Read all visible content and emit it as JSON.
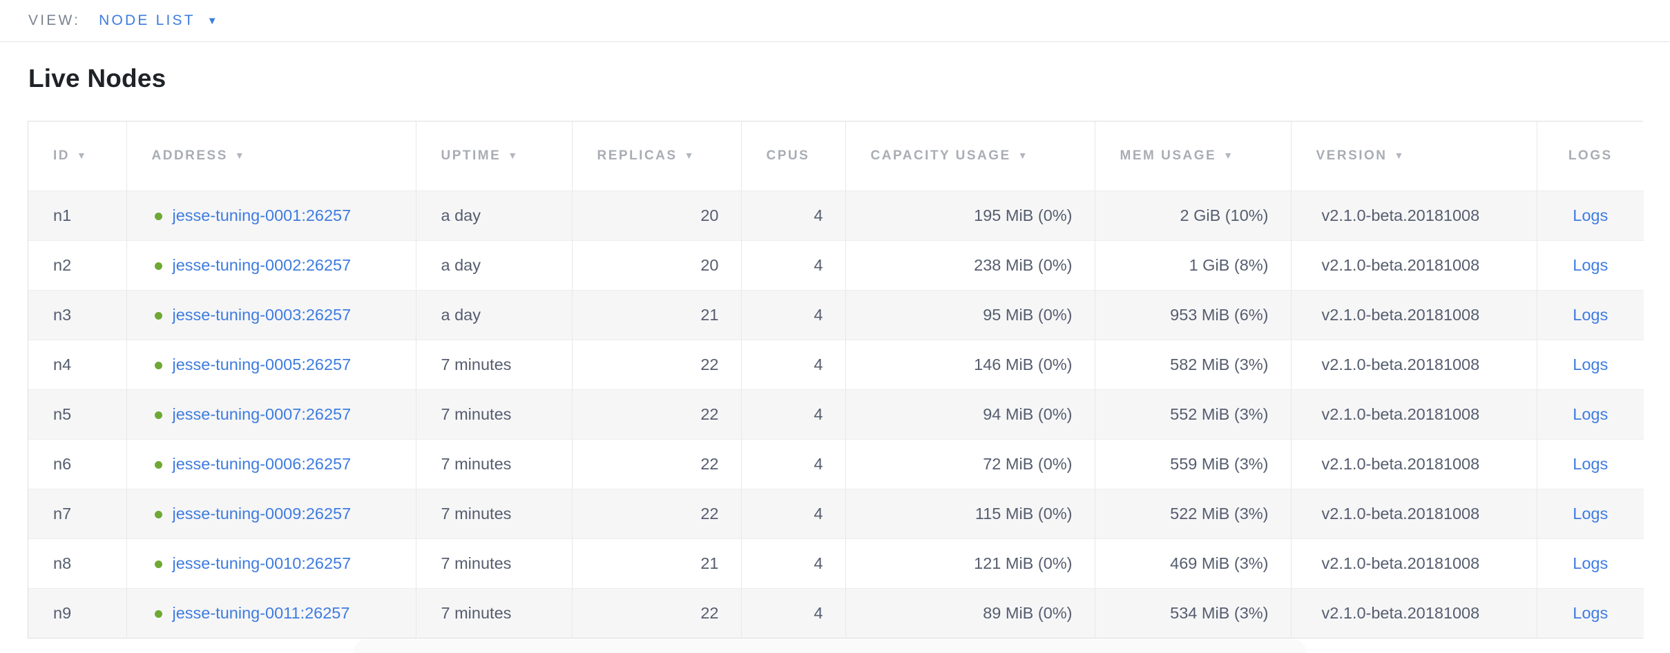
{
  "view_bar": {
    "label": "VIEW:",
    "selected": "NODE LIST",
    "caret_icon": "▼"
  },
  "page": {
    "title": "Live Nodes"
  },
  "table": {
    "sort_arrow_icon": "▼",
    "columns": [
      {
        "key": "id",
        "label": "ID",
        "sortable": true,
        "align": "left"
      },
      {
        "key": "address",
        "label": "ADDRESS",
        "sortable": true,
        "align": "left"
      },
      {
        "key": "uptime",
        "label": "UPTIME",
        "sortable": true,
        "align": "left"
      },
      {
        "key": "replicas",
        "label": "REPLICAS",
        "sortable": true,
        "align": "right"
      },
      {
        "key": "cpus",
        "label": "CPUS",
        "sortable": false,
        "align": "right"
      },
      {
        "key": "capacity",
        "label": "CAPACITY USAGE",
        "sortable": true,
        "align": "right"
      },
      {
        "key": "mem",
        "label": "MEM USAGE",
        "sortable": true,
        "align": "right"
      },
      {
        "key": "version",
        "label": "VERSION",
        "sortable": true,
        "align": "left"
      },
      {
        "key": "logs",
        "label": "LOGS",
        "sortable": false,
        "align": "center"
      }
    ],
    "rows": [
      {
        "id": "n1",
        "address": "jesse-tuning-0001:26257",
        "status": "live",
        "uptime": "a day",
        "replicas": "20",
        "cpus": "4",
        "capacity": "195 MiB (0%)",
        "mem": "2 GiB (10%)",
        "version": "v2.1.0-beta.20181008",
        "logs": "Logs"
      },
      {
        "id": "n2",
        "address": "jesse-tuning-0002:26257",
        "status": "live",
        "uptime": "a day",
        "replicas": "20",
        "cpus": "4",
        "capacity": "238 MiB (0%)",
        "mem": "1 GiB (8%)",
        "version": "v2.1.0-beta.20181008",
        "logs": "Logs"
      },
      {
        "id": "n3",
        "address": "jesse-tuning-0003:26257",
        "status": "live",
        "uptime": "a day",
        "replicas": "21",
        "cpus": "4",
        "capacity": "95 MiB (0%)",
        "mem": "953 MiB (6%)",
        "version": "v2.1.0-beta.20181008",
        "logs": "Logs"
      },
      {
        "id": "n4",
        "address": "jesse-tuning-0005:26257",
        "status": "live",
        "uptime": "7 minutes",
        "replicas": "22",
        "cpus": "4",
        "capacity": "146 MiB (0%)",
        "mem": "582 MiB (3%)",
        "version": "v2.1.0-beta.20181008",
        "logs": "Logs"
      },
      {
        "id": "n5",
        "address": "jesse-tuning-0007:26257",
        "status": "live",
        "uptime": "7 minutes",
        "replicas": "22",
        "cpus": "4",
        "capacity": "94 MiB (0%)",
        "mem": "552 MiB (3%)",
        "version": "v2.1.0-beta.20181008",
        "logs": "Logs"
      },
      {
        "id": "n6",
        "address": "jesse-tuning-0006:26257",
        "status": "live",
        "uptime": "7 minutes",
        "replicas": "22",
        "cpus": "4",
        "capacity": "72 MiB (0%)",
        "mem": "559 MiB (3%)",
        "version": "v2.1.0-beta.20181008",
        "logs": "Logs"
      },
      {
        "id": "n7",
        "address": "jesse-tuning-0009:26257",
        "status": "live",
        "uptime": "7 minutes",
        "replicas": "22",
        "cpus": "4",
        "capacity": "115 MiB (0%)",
        "mem": "522 MiB (3%)",
        "version": "v2.1.0-beta.20181008",
        "logs": "Logs"
      },
      {
        "id": "n8",
        "address": "jesse-tuning-0010:26257",
        "status": "live",
        "uptime": "7 minutes",
        "replicas": "21",
        "cpus": "4",
        "capacity": "121 MiB (0%)",
        "mem": "469 MiB (3%)",
        "version": "v2.1.0-beta.20181008",
        "logs": "Logs"
      },
      {
        "id": "n9",
        "address": "jesse-tuning-0011:26257",
        "status": "live",
        "uptime": "7 minutes",
        "replicas": "22",
        "cpus": "4",
        "capacity": "89 MiB (0%)",
        "mem": "534 MiB (3%)",
        "version": "v2.1.0-beta.20181008",
        "logs": "Logs"
      }
    ]
  },
  "colors": {
    "accent_blue": "#3e7ce0",
    "live_green": "#6fa834",
    "header_gray": "#a9adb3",
    "body_text": "#555d6e",
    "row_stripe": "#f6f6f7",
    "border": "#dedfe1"
  }
}
